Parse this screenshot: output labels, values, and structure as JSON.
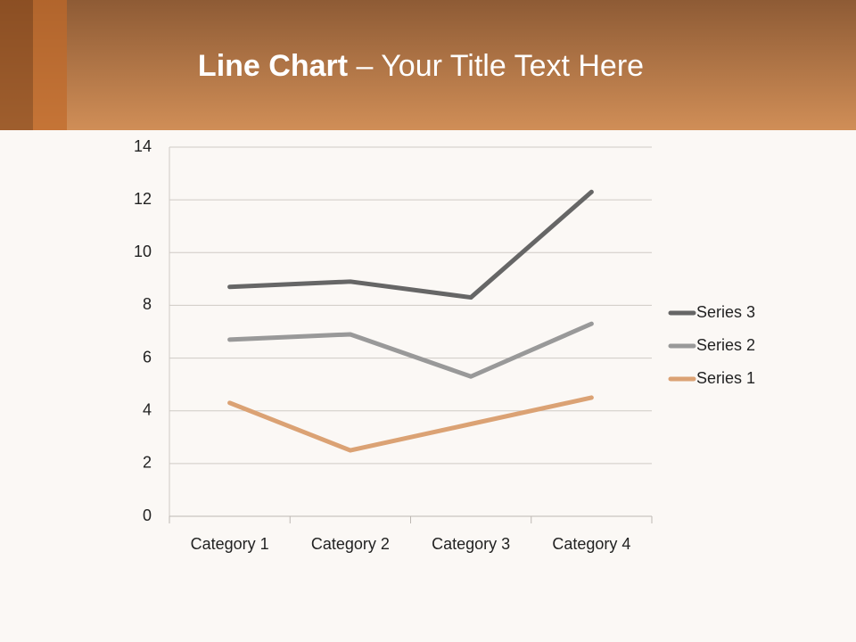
{
  "chart_data": {
    "type": "line",
    "stacked": true,
    "title": [
      "Line Chart",
      "– Your Title Text Here"
    ],
    "categories": [
      "Category 1",
      "Category 2",
      "Category 3",
      "Category 4"
    ],
    "series": [
      {
        "name": "Series 1",
        "color": "#dba274",
        "values": [
          4.3,
          2.5,
          3.5,
          4.5
        ]
      },
      {
        "name": "Series 2",
        "color": "#999999",
        "values": [
          2.4,
          4.4,
          1.8,
          2.8
        ]
      },
      {
        "name": "Series 3",
        "color": "#666666",
        "values": [
          2,
          2,
          3,
          5
        ]
      }
    ],
    "ylim": [
      0,
      14
    ],
    "yticks": [
      0,
      2,
      4,
      6,
      8,
      10,
      12,
      14
    ],
    "grid": true,
    "legend": "right"
  }
}
